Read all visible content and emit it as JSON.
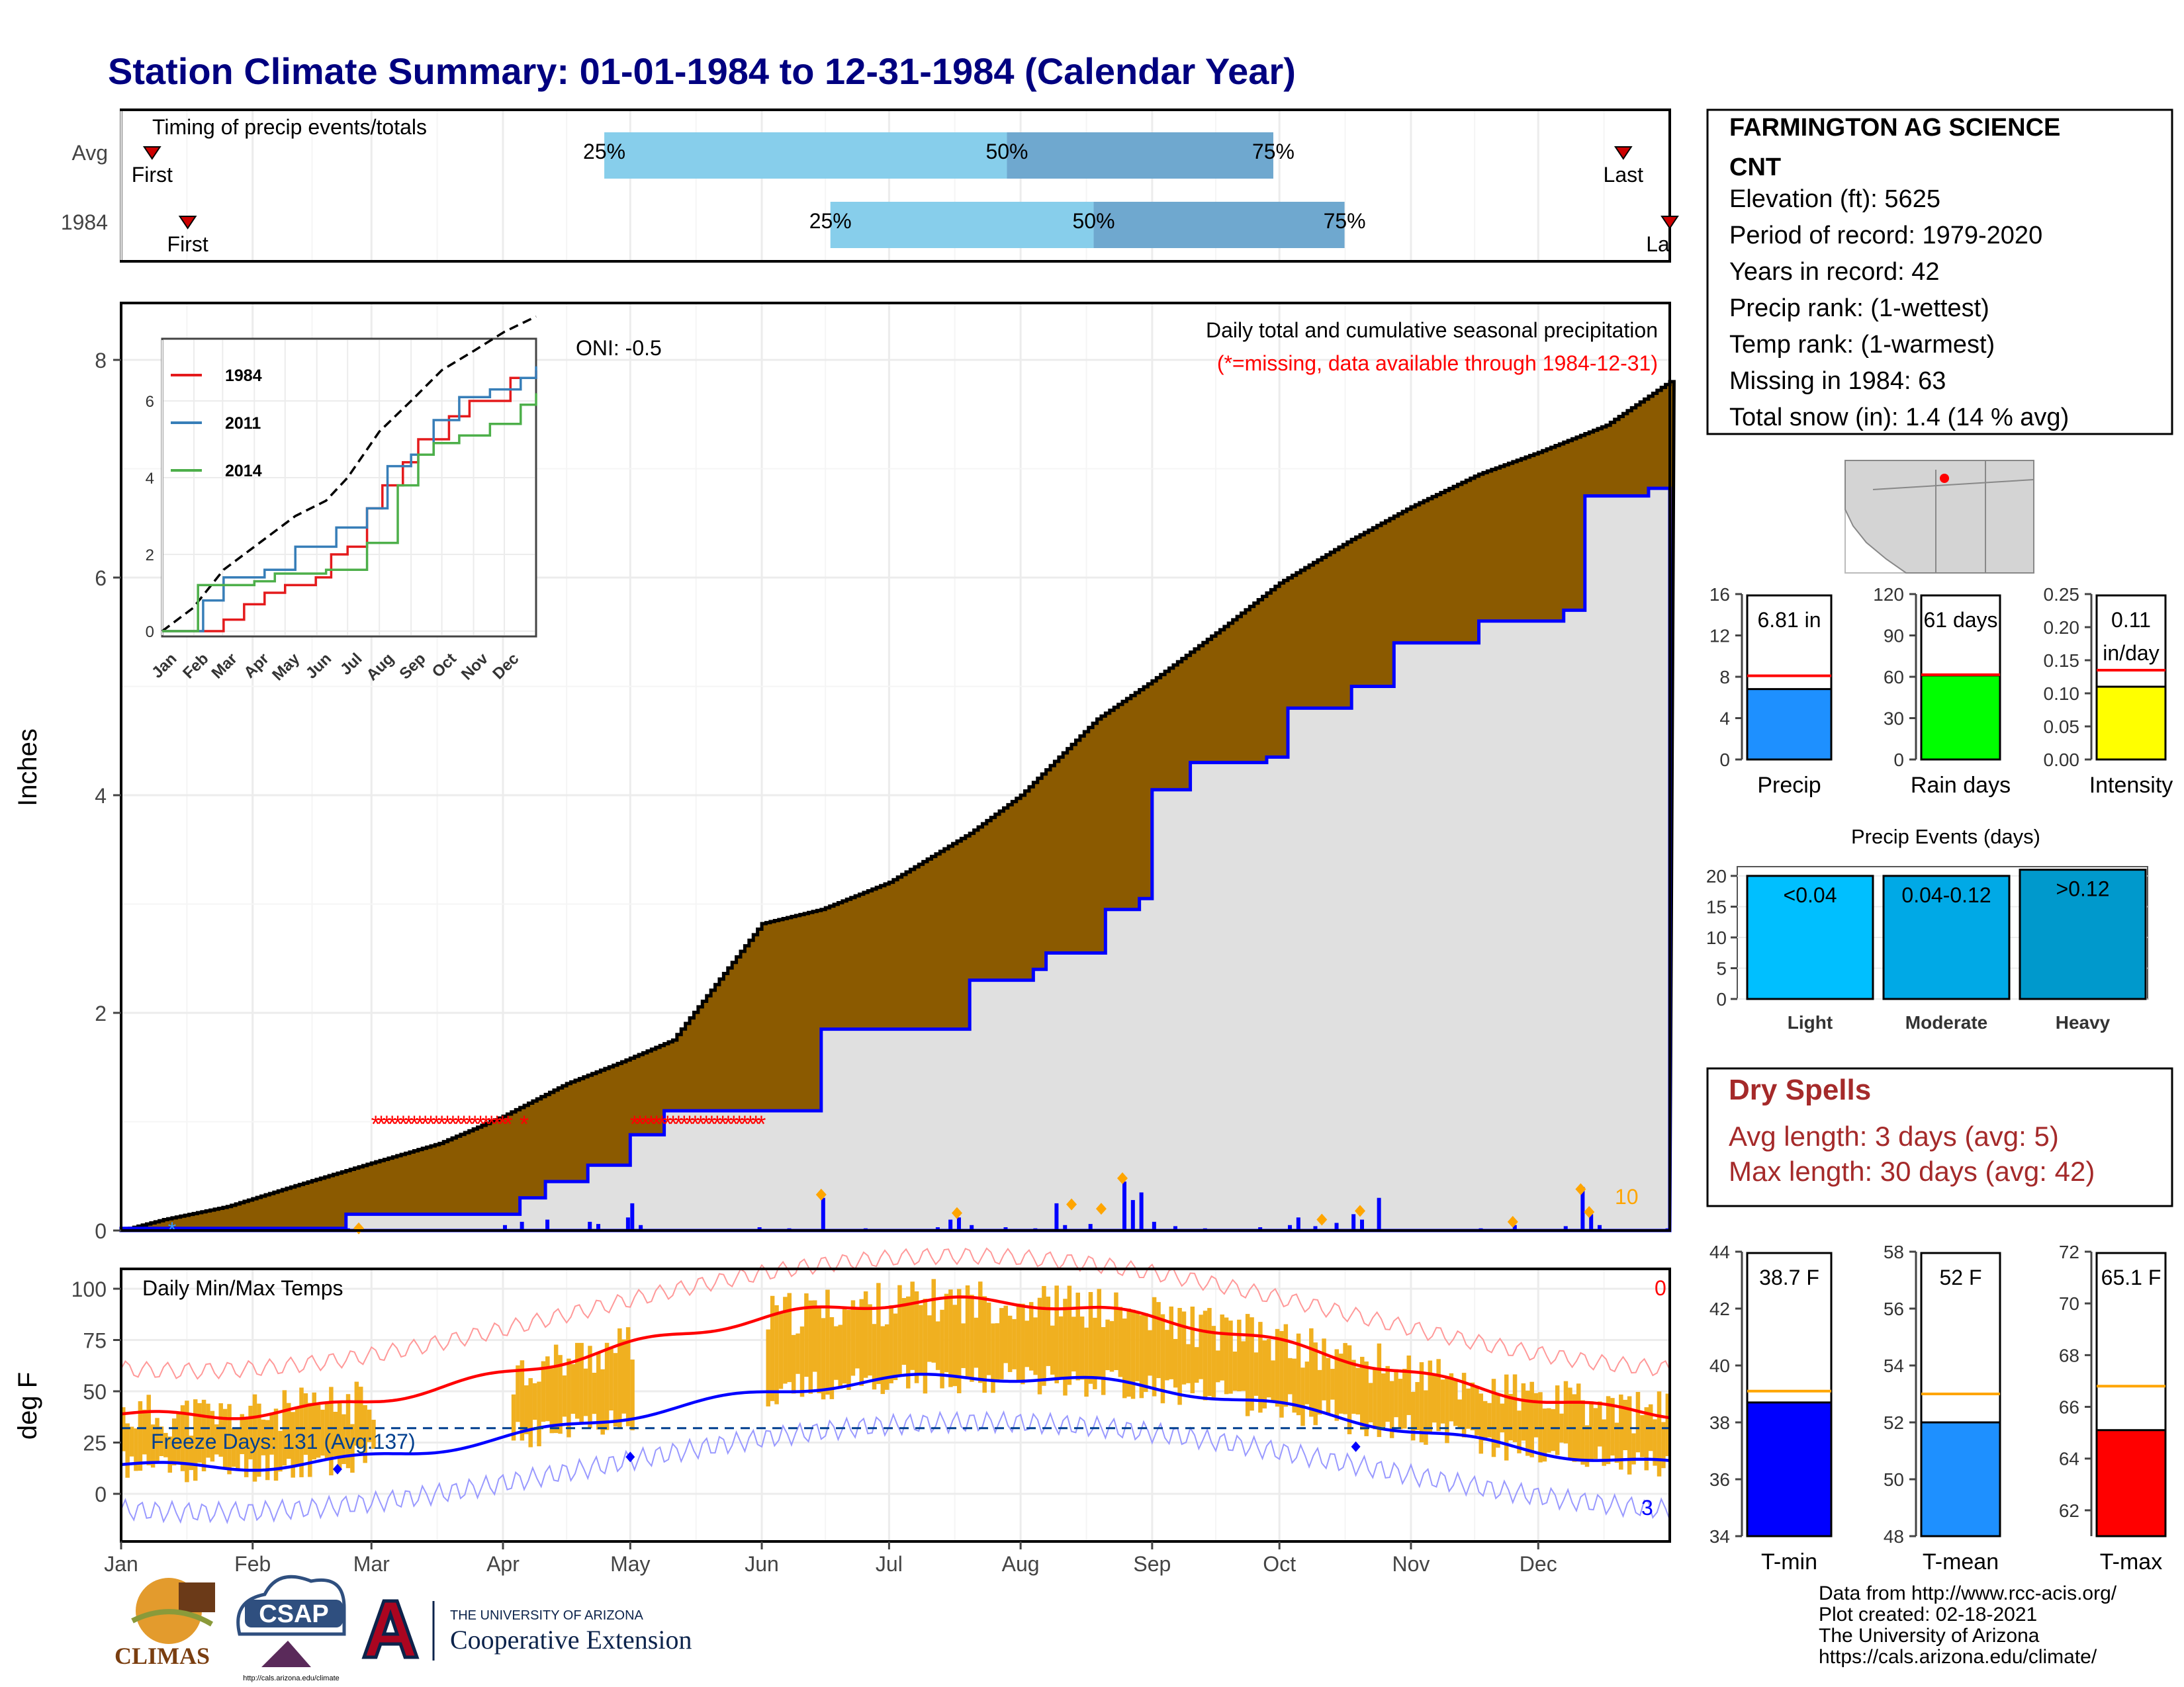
{
  "title": "Station Climate Summary: 01-01-1984 to 12-31-1984 (Calendar Year)",
  "timing": {
    "label": "Timing of precip events/totals",
    "rows": [
      {
        "name": "Avg",
        "first_label": "First",
        "last_label": "Last",
        "p25": 0.312,
        "p50": 0.572,
        "p75": 0.744,
        "first": 0.02,
        "last": 0.97
      },
      {
        "name": "1984",
        "first_label": "First",
        "last_label": "La",
        "p25": 0.458,
        "p50": 0.628,
        "p75": 0.79,
        "first": 0.043,
        "last": 1.0
      }
    ],
    "pct_labels": [
      "25%",
      "50%",
      "75%"
    ]
  },
  "station": {
    "name": "FARMINGTON AG SCIENCE",
    "abbr": "CNT",
    "lines": [
      "Elevation (ft): 5625",
      "Period of record: 1979-2020",
      "Years in record: 42",
      "Precip rank:  (1-wettest)",
      "Temp rank:  (1-warmest)",
      "Missing in 1984: 63",
      "Total snow (in): 1.4 (14 % avg)"
    ]
  },
  "main_chart": {
    "ylabel": "Inches",
    "subtitle": "Daily total and cumulative seasonal precipitation",
    "missing_note": "(*=missing, data available through 1984-12-31)",
    "oni": "ONI: -0.5",
    "yticks": [
      "0",
      "2",
      "4",
      "6",
      "8"
    ],
    "count_label": "10"
  },
  "inset": {
    "legend": [
      "1984",
      "2011",
      "2014"
    ],
    "yticks": [
      "0",
      "2",
      "4",
      "6"
    ],
    "months": [
      "Jan",
      "Feb",
      "Mar",
      "Apr",
      "May",
      "Jun",
      "Jul",
      "Aug",
      "Sep",
      "Oct",
      "Nov",
      "Dec"
    ]
  },
  "temp_chart": {
    "ylabel": "deg F",
    "title": "Daily Min/Max Temps",
    "freeze": "Freeze Days: 131 (Avg:137)",
    "yticks": [
      "0",
      "25",
      "50",
      "75",
      "100"
    ],
    "count_top": "0",
    "count_bottom": "3"
  },
  "months": [
    "Jan",
    "Feb",
    "Mar",
    "Apr",
    "May",
    "Jun",
    "Jul",
    "Aug",
    "Sep",
    "Oct",
    "Nov",
    "Dec"
  ],
  "summary_bars": [
    {
      "label": "Precip",
      "value_text": "6.81 in",
      "value": 6.81,
      "avg": 8.1,
      "max": 16,
      "ticks": [
        "0",
        "4",
        "8",
        "12",
        "16"
      ],
      "color": "#1e90ff"
    },
    {
      "label": "Rain days",
      "value_text": "61 days",
      "value": 61,
      "avg": 61.5,
      "max": 120,
      "ticks": [
        "0",
        "30",
        "60",
        "90",
        "120"
      ],
      "color": "#00ff00"
    },
    {
      "label": "Intensity",
      "value_text": "0.11",
      "value_text2": "in/day",
      "value": 0.11,
      "avg": 0.135,
      "max": 0.25,
      "ticks": [
        "0.00",
        "0.05",
        "0.10",
        "0.15",
        "0.20",
        "0.25"
      ],
      "color": "#ffff00"
    }
  ],
  "events": {
    "title": "Precip Events (days)",
    "ticks": [
      "0",
      "5",
      "10",
      "15",
      "20"
    ],
    "bars": [
      {
        "label": "Light",
        "range": "<0.04",
        "value": 20,
        "color": "#00bfff"
      },
      {
        "label": "Moderate",
        "range": "0.04-0.12",
        "value": 20,
        "color": "#00a9e6"
      },
      {
        "label": "Heavy",
        "range": ">0.12",
        "value": 21,
        "color": "#0099cc"
      }
    ]
  },
  "dry_spells": {
    "title": "Dry Spells",
    "avg": "Avg length: 3 days (avg: 5)",
    "max": "Max length: 30 days (avg: 42)"
  },
  "temp_bars": [
    {
      "label": "T-min",
      "value_text": "38.7 F",
      "value": 38.7,
      "avg": 39.1,
      "min": 34,
      "max": 44,
      "ticks": [
        "34",
        "36",
        "38",
        "40",
        "42",
        "44"
      ],
      "color": "#0000ff"
    },
    {
      "label": "T-mean",
      "value_text": "52 F",
      "value": 52.0,
      "avg": 53.0,
      "min": 48,
      "max": 58,
      "ticks": [
        "48",
        "50",
        "52",
        "54",
        "56",
        "58"
      ],
      "color": "#1e90ff"
    },
    {
      "label": "T-max",
      "value_text": "65.1 F",
      "value": 65.1,
      "avg": 66.8,
      "min": 61,
      "max": 72,
      "ticks": [
        "62",
        "64",
        "66",
        "68",
        "70",
        "72"
      ],
      "color": "#ff0000"
    }
  ],
  "credits": [
    "Data from http://www.rcc-acis.org/",
    "Plot created: 02-18-2021",
    "The University of Arizona",
    "https://cals.arizona.edu/climate/"
  ],
  "logos": {
    "climas": "CLIMAS",
    "csap": "CSAP",
    "csap_url": "http://cals.arizona.edu/climate",
    "ua_small": "THE UNIVERSITY OF ARIZONA",
    "ua_big": "Cooperative Extension"
  },
  "colors": {
    "title": "#000080",
    "cum_fill": "#8b5a00",
    "light_fill": "#e0e0e0",
    "blue_line": "#0000ff",
    "temp_bar": "#f0b020",
    "dry": "#a52a2a",
    "avg_bar": "#87ceeb",
    "avg_bar2": "#6fa8cf"
  }
}
